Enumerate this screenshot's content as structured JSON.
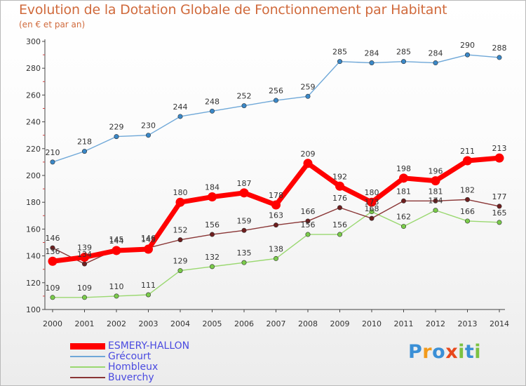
{
  "title": "Evolution de la Dotation Globale de Fonctionnement par Habitant",
  "subtitle": "(en € et par an)",
  "logo_text": "Proxiti",
  "chart_data": {
    "type": "line",
    "title": "Evolution de la Dotation Globale de Fonctionnement par Habitant",
    "subtitle": "(en € et par an)",
    "xlabel": "",
    "ylabel": "",
    "x": [
      "2000",
      "2001",
      "2002",
      "2003",
      "2004",
      "2005",
      "2006",
      "2007",
      "2008",
      "2009",
      "2010",
      "2011",
      "2012",
      "2013",
      "2014"
    ],
    "ylim": [
      100,
      300
    ],
    "yticks": [
      100,
      120,
      140,
      160,
      180,
      200,
      220,
      240,
      260,
      280,
      300
    ],
    "grid": false,
    "legend_position": "bottom-left",
    "series": [
      {
        "name": "Grécourt",
        "color": "#6fa8d8",
        "marker_color": "#3a88c8",
        "values": [
          210,
          218,
          229,
          230,
          244,
          248,
          252,
          256,
          259,
          285,
          284,
          285,
          284,
          290,
          288
        ]
      },
      {
        "name": "Hombleux",
        "color": "#9ad870",
        "marker_color": "#7acc4a",
        "values": [
          109,
          109,
          110,
          111,
          129,
          132,
          135,
          138,
          156,
          156,
          173,
          162,
          174,
          166,
          165
        ]
      },
      {
        "name": "Buverchy",
        "color": "#8a3636",
        "marker_color": "#6e1e1e",
        "values": [
          146,
          134,
          145,
          146,
          152,
          156,
          159,
          163,
          166,
          176,
          168,
          181,
          181,
          182,
          177
        ]
      },
      {
        "name": "ESMERY-HALLON",
        "color": "#ff0000",
        "marker_color": "#ff0000",
        "highlight": true,
        "values": [
          136,
          139,
          144,
          145,
          180,
          184,
          187,
          178,
          209,
          192,
          180,
          198,
          196,
          211,
          213
        ]
      }
    ],
    "legend_order": [
      "ESMERY-HALLON",
      "Grécourt",
      "Hombleux",
      "Buverchy"
    ]
  }
}
